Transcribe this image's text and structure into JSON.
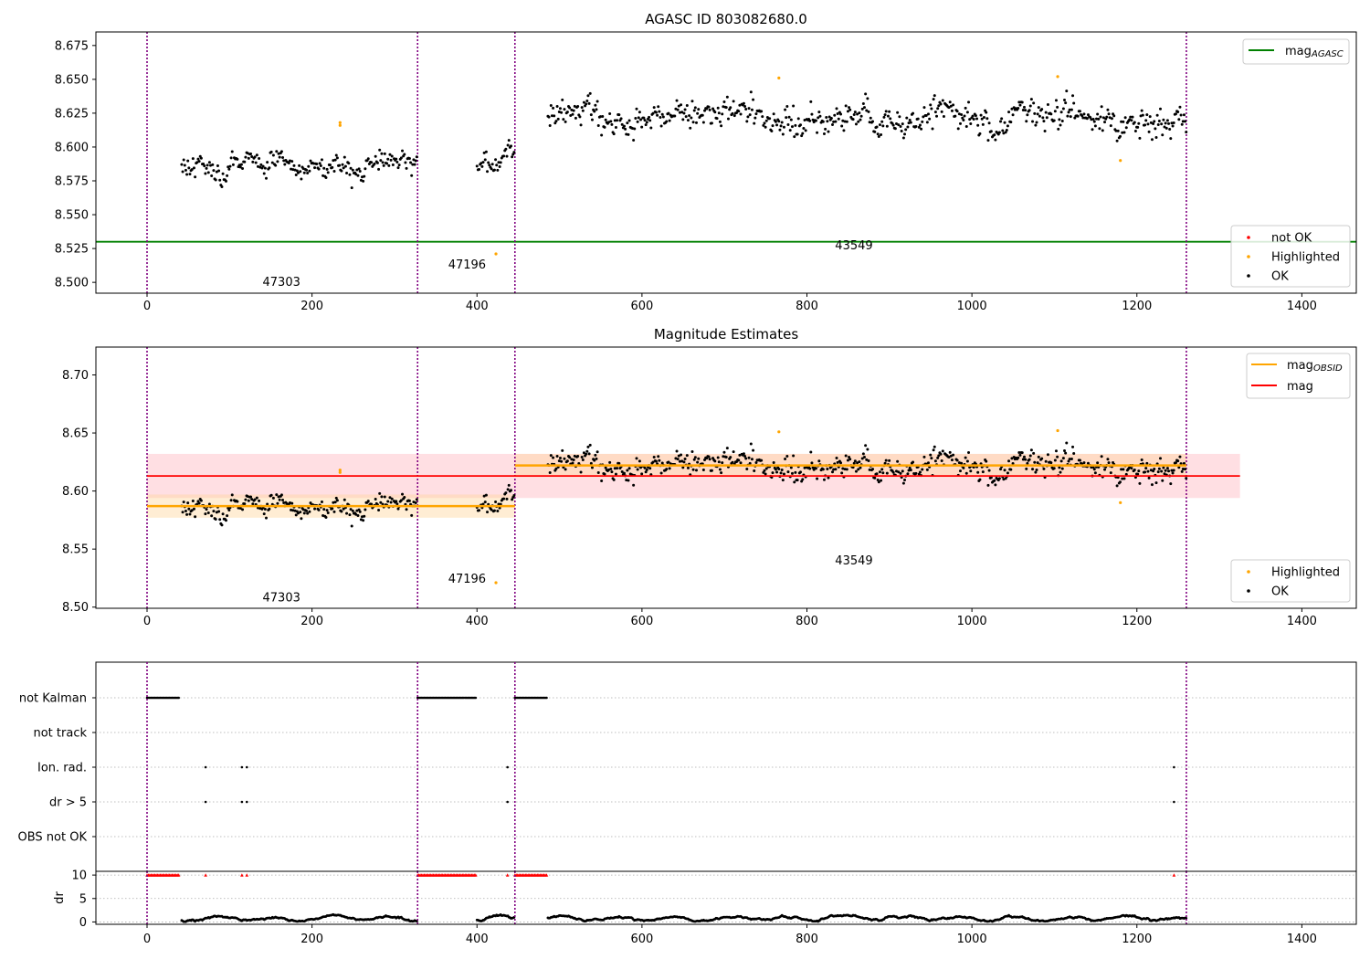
{
  "figure": {
    "title": "AGASC ID 803082680.0"
  },
  "chart_data": [
    {
      "type": "scatter",
      "title": "AGASC ID 803082680.0",
      "xlim": [
        -62,
        1466
      ],
      "ylim": [
        8.492,
        8.685
      ],
      "x_ticks": [
        "0",
        "200",
        "400",
        "600",
        "800",
        "1000",
        "1200",
        "1400"
      ],
      "y_ticks": [
        "8.500",
        "8.525",
        "8.550",
        "8.575",
        "8.600",
        "8.625",
        "8.650",
        "8.675"
      ],
      "obs_boundaries": [
        0,
        328,
        446,
        1260
      ],
      "obsid_labels": [
        {
          "text": "47303",
          "x": 163,
          "y": 8.5
        },
        {
          "text": "47196",
          "x": 388,
          "y": 8.513
        },
        {
          "text": "43549",
          "x": 857,
          "y": 8.527
        }
      ],
      "mag_agasc": 8.53,
      "legend_lines": [
        {
          "name": "mag",
          "sub": "AGASC",
          "color": "#008000"
        }
      ],
      "legend_points": [
        {
          "name": "not OK",
          "color": "#ff0000"
        },
        {
          "name": "Highlighted",
          "color": "#ffa500"
        },
        {
          "name": "OK",
          "color": "#000000"
        }
      ],
      "segments": [
        {
          "x_start": 42,
          "x_end": 328,
          "mean": 8.587,
          "sd": 0.0075
        },
        {
          "x_start": 400,
          "x_end": 446,
          "mean": 8.586,
          "sd": 0.007
        },
        {
          "x_start": 486,
          "x_end": 1260,
          "mean": 8.622,
          "sd": 0.009
        }
      ],
      "highlighted": [
        {
          "x": 234,
          "y": 8.618
        },
        {
          "x": 234,
          "y": 8.616
        },
        {
          "x": 423,
          "y": 8.521
        },
        {
          "x": 766,
          "y": 8.651
        },
        {
          "x": 1104,
          "y": 8.652
        },
        {
          "x": 1180,
          "y": 8.59
        }
      ]
    },
    {
      "type": "scatter",
      "title": "Magnitude Estimates",
      "xlim": [
        -62,
        1466
      ],
      "ylim": [
        8.499,
        8.724
      ],
      "x_ticks": [
        "0",
        "200",
        "400",
        "600",
        "800",
        "1000",
        "1200",
        "1400"
      ],
      "y_ticks": [
        "8.50",
        "8.55",
        "8.60",
        "8.65",
        "8.70"
      ],
      "obs_boundaries": [
        0,
        328,
        446,
        1260
      ],
      "obsid_labels": [
        {
          "text": "47303",
          "x": 163,
          "y": 8.508
        },
        {
          "text": "47196",
          "x": 388,
          "y": 8.524
        },
        {
          "text": "43549",
          "x": 857,
          "y": 8.54
        }
      ],
      "mag": {
        "value": 8.613,
        "band": [
          8.594,
          8.632
        ],
        "x_range": [
          0,
          1325
        ]
      },
      "mag_obsid": [
        {
          "x_start": 0,
          "x_end": 446,
          "value": 8.587,
          "band": [
            8.577,
            8.597
          ]
        },
        {
          "x_start": 446,
          "x_end": 1260,
          "value": 8.622,
          "band": [
            8.612,
            8.632
          ]
        }
      ],
      "legend_lines": [
        {
          "name": "mag",
          "sub": "OBSID",
          "color": "#ffa500"
        },
        {
          "name": "mag",
          "sub": "",
          "color": "#ff0000"
        }
      ],
      "legend_points": [
        {
          "name": "Highlighted",
          "color": "#ffa500"
        },
        {
          "name": "OK",
          "color": "#000000"
        }
      ]
    },
    {
      "type": "scatter",
      "title": "",
      "xlim": [
        -62,
        1466
      ],
      "categories": [
        "not Kalman",
        "not track",
        "Ion. rad.",
        "dr > 5",
        "OBS not OK"
      ],
      "flags": {
        "not Kalman": [
          [
            0,
            40
          ],
          [
            328,
            400
          ],
          [
            446,
            486
          ]
        ],
        "not track": [],
        "Ion. rad.": [
          71,
          115,
          121,
          437,
          1245
        ],
        "dr > 5": [
          71,
          115,
          121,
          437,
          1245
        ],
        "OBS not OK": []
      }
    },
    {
      "type": "scatter",
      "title": "",
      "ylabel": "dr",
      "xlim": [
        -62,
        1466
      ],
      "ylim": [
        -0.5,
        10.8
      ],
      "y_ticks": [
        "0",
        "5",
        "10"
      ],
      "x_ticks": [
        "0",
        "200",
        "400",
        "600",
        "800",
        "1000",
        "1200",
        "1400"
      ],
      "dr_flag_ranges": [
        [
          0,
          40
        ],
        [
          328,
          400
        ],
        [
          446,
          486
        ]
      ],
      "dr_flag_points": [
        71,
        115,
        121,
        437,
        1245
      ],
      "dr_segments": [
        [
          42,
          328
        ],
        [
          400,
          446
        ],
        [
          486,
          1260
        ]
      ]
    }
  ]
}
